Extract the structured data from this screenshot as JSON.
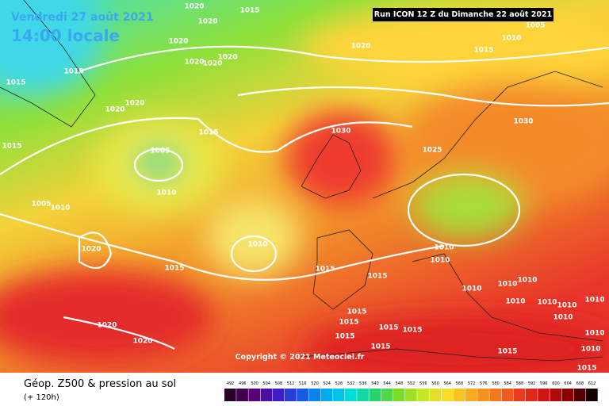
{
  "header": {
    "date": "Vendredi 27 août 2021",
    "time": "14:00 locale",
    "run": "Run ICON 12 Z du Dimanche 22 août 2021"
  },
  "copyright": "Copyright © 2021 Meteociel.fr",
  "footer": {
    "title": "Géop. Z500 & pression au sol",
    "lead": "(+ 120h)"
  },
  "scale": [
    492,
    496,
    500,
    504,
    508,
    512,
    516,
    520,
    524,
    528,
    532,
    536,
    540,
    544,
    548,
    552,
    556,
    560,
    564,
    568,
    572,
    576,
    580,
    584,
    588,
    592,
    596,
    600,
    604,
    608,
    612
  ],
  "isobars": [
    1020,
    1020,
    1015,
    1020,
    1020,
    1020,
    1020,
    1020,
    1015,
    1015,
    1020,
    1020,
    1015,
    1015,
    1005,
    1010,
    1005,
    1010,
    1020,
    1010,
    1015,
    1015,
    1015,
    1010,
    1015,
    1005,
    1030,
    1025,
    1030,
    1010,
    1010,
    1010,
    1010,
    1010,
    1010,
    1010,
    1010,
    1010,
    1010,
    1010,
    1010,
    1015,
    1015,
    1015,
    1015,
    1015,
    1015,
    1015,
    1015,
    1020,
    1020
  ]
}
